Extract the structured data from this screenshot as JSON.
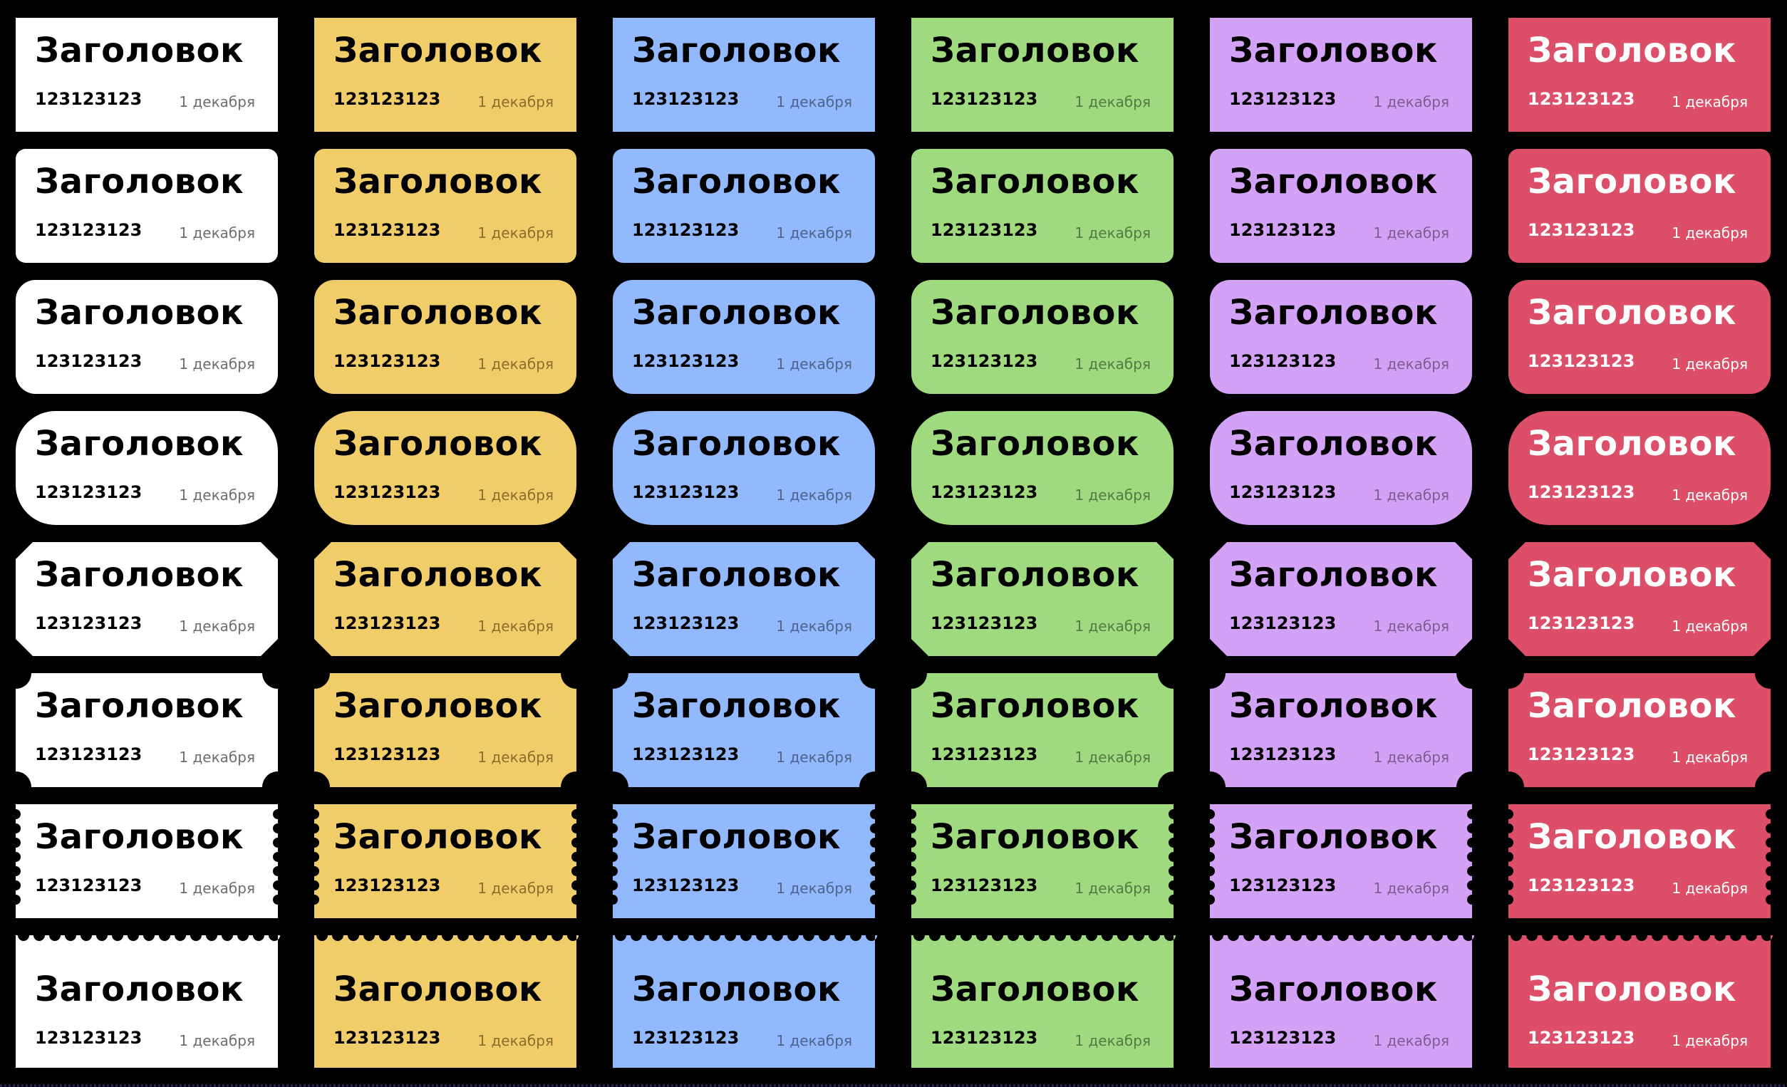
{
  "ticket": {
    "title": "Заголовок",
    "number": "123123123",
    "date": "1 декабря"
  },
  "columns": [
    {
      "color": "#FFFFFF",
      "text_color": "#000000",
      "date_color": "#6E6E6E"
    },
    {
      "color": "#F1CD6A",
      "text_color": "#000000",
      "date_color": "#8A6F2C"
    },
    {
      "color": "#92B8FE",
      "text_color": "#000000",
      "date_color": "#4E648F"
    },
    {
      "color": "#9FDB7E",
      "text_color": "#000000",
      "date_color": "#557A43"
    },
    {
      "color": "#D3A2F6",
      "text_color": "#000000",
      "date_color": "#7D5E93"
    },
    {
      "color": "#DD4F68",
      "text_color": "#FFFFFF",
      "date_color": "#FFFFFF"
    }
  ],
  "row_styles": [
    "square",
    "slightly-rounded",
    "rounded",
    "pill",
    "chamfered",
    "notched",
    "perforated-sides",
    "perforated-top"
  ]
}
